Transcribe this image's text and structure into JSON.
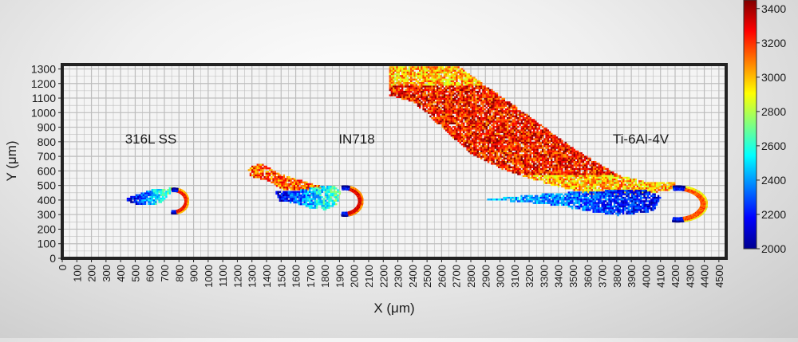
{
  "chart_data": {
    "type": "heatmap",
    "title": "",
    "xlabel": "X (μm)",
    "ylabel": "Y (μm)",
    "xlim": [
      0,
      4550
    ],
    "ylim": [
      0,
      1330
    ],
    "x_ticks": [
      0,
      100,
      200,
      300,
      400,
      500,
      600,
      700,
      800,
      900,
      1000,
      1100,
      1200,
      1300,
      1400,
      1500,
      1600,
      1700,
      1800,
      1900,
      2000,
      2100,
      2200,
      2300,
      2400,
      2500,
      2600,
      2700,
      2800,
      2900,
      3000,
      3100,
      3200,
      3300,
      3400,
      3500,
      3600,
      3700,
      3800,
      3900,
      4000,
      4100,
      4200,
      4300,
      4400,
      4500
    ],
    "y_ticks": [
      0,
      100,
      200,
      300,
      400,
      500,
      600,
      700,
      800,
      900,
      1000,
      1100,
      1200,
      1300
    ],
    "grid": true,
    "colorbar": {
      "ticks": [
        2000,
        2200,
        2400,
        2600,
        2800,
        3000,
        3200,
        3400
      ],
      "range": [
        2000,
        3450
      ],
      "colormap": "jet",
      "placement": "right"
    },
    "annotations": [
      {
        "text": "316L SS",
        "x": 620,
        "y": 820
      },
      {
        "text": "IN718",
        "x": 2050,
        "y": 820
      },
      {
        "text": "Ti-6Al-4V",
        "x": 3990,
        "y": 820
      }
    ],
    "regions": [
      {
        "material": "316L SS",
        "tail": [
          [
            440,
            420
          ],
          [
            540,
            455
          ],
          [
            620,
            480
          ],
          [
            700,
            480
          ],
          [
            760,
            500
          ],
          [
            720,
            430
          ],
          [
            680,
            390
          ],
          [
            600,
            370
          ],
          [
            520,
            370
          ],
          [
            430,
            400
          ]
        ],
        "tail_value_start": 2050,
        "tail_value_end": 2750,
        "ring_center": [
          760,
          400
        ],
        "ring_radius": [
          95,
          85
        ],
        "ring_value": 3250,
        "ring_edge_value": 2200
      },
      {
        "material": "IN718",
        "plume": [
          [
            1260,
            620
          ],
          [
            1350,
            660
          ],
          [
            1500,
            580
          ],
          [
            1700,
            520
          ],
          [
            1800,
            490
          ],
          [
            1600,
            470
          ],
          [
            1500,
            480
          ],
          [
            1400,
            540
          ],
          [
            1280,
            570
          ]
        ],
        "plume_value": 3150,
        "tail": [
          [
            1450,
            470
          ],
          [
            1600,
            470
          ],
          [
            1750,
            500
          ],
          [
            1850,
            510
          ],
          [
            1900,
            470
          ],
          [
            1880,
            380
          ],
          [
            1800,
            340
          ],
          [
            1700,
            350
          ],
          [
            1600,
            380
          ],
          [
            1480,
            400
          ]
        ],
        "tail_value_start": 2100,
        "tail_value_end": 2700,
        "ring_center": [
          1930,
          400
        ],
        "ring_radius": [
          120,
          100
        ],
        "ring_value": 3300,
        "ring_edge_value": 2200
      },
      {
        "material": "Ti-6Al-4V",
        "plume": [
          [
            2240,
            1330
          ],
          [
            2700,
            1330
          ],
          [
            3100,
            1050
          ],
          [
            3500,
            760
          ],
          [
            3800,
            580
          ],
          [
            4000,
            530
          ],
          [
            4200,
            530
          ],
          [
            4200,
            480
          ],
          [
            3900,
            440
          ],
          [
            3600,
            450
          ],
          [
            3300,
            520
          ],
          [
            3000,
            620
          ],
          [
            2800,
            720
          ],
          [
            2600,
            900
          ],
          [
            2400,
            1080
          ],
          [
            2240,
            1120
          ]
        ],
        "plume_value": 3250,
        "plume_edge_value": 2850,
        "tail": [
          [
            2900,
            410
          ],
          [
            3300,
            450
          ],
          [
            3700,
            470
          ],
          [
            4000,
            470
          ],
          [
            4100,
            430
          ],
          [
            4050,
            330
          ],
          [
            3800,
            300
          ],
          [
            3600,
            330
          ],
          [
            3300,
            380
          ]
        ],
        "tail_value_start": 2500,
        "tail_value_end": 2150,
        "ring_center": [
          4210,
          380
        ],
        "ring_radius": [
          200,
          120
        ],
        "ring_value": 3150,
        "ring_edge_value": 2200
      }
    ]
  }
}
